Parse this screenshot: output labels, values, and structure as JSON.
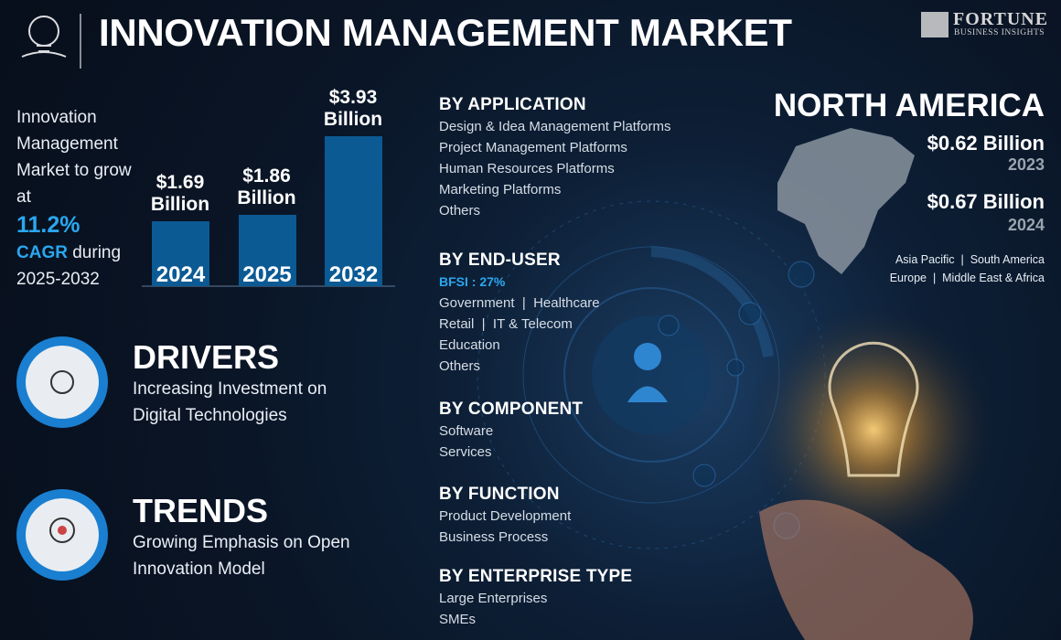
{
  "header": {
    "title": "INNOVATION MANAGEMENT MARKET",
    "brand": "FORTUNE",
    "brand_sub": "BUSINESS INSIGHTS"
  },
  "intro": {
    "text": "Innovation Management Market to grow at",
    "cagr_value": "11.2%",
    "cagr_label": "CAGR",
    "period": "during 2025-2032"
  },
  "chart_data": {
    "type": "bar",
    "categories": [
      "2024",
      "2025",
      "2032"
    ],
    "values": [
      1.69,
      1.86,
      3.93
    ],
    "value_labels": [
      "$1.69 Billion",
      "$1.86 Billion",
      "$3.93 Billion"
    ],
    "color": "#0b5a94"
  },
  "drivers": {
    "title": "DRIVERS",
    "text": "Increasing Investment on Digital Technologies"
  },
  "trends": {
    "title": "TRENDS",
    "text": "Growing Emphasis on Open Innovation Model"
  },
  "segments": [
    {
      "title": "BY APPLICATION",
      "items": [
        "Design & Idea Management Platforms",
        "Project Management Platforms",
        "Human Resources Platforms",
        "Marketing Platforms",
        "Others"
      ]
    },
    {
      "title": "BY END-USER",
      "highlight": "BFSI : 27%",
      "items": [
        "Government  |  Healthcare",
        "Retail  |  IT & Telecom",
        "Education",
        "Others"
      ]
    },
    {
      "title": "BY COMPONENT",
      "items": [
        "Software",
        "Services"
      ]
    },
    {
      "title": "BY FUNCTION",
      "items": [
        "Product Development",
        "Business Process"
      ]
    },
    {
      "title": "BY ENTERPRISE TYPE",
      "items": [
        "Large Enterprises",
        "SMEs"
      ]
    }
  ],
  "region": {
    "title": "NORTH AMERICA",
    "stats": [
      {
        "value": "$0.62 Billion",
        "year": "2023"
      },
      {
        "value": "$0.67 Billion",
        "year": "2024"
      }
    ],
    "others": [
      "Asia Pacific  |  South America",
      "Europe  |  Middle East & Africa"
    ]
  }
}
